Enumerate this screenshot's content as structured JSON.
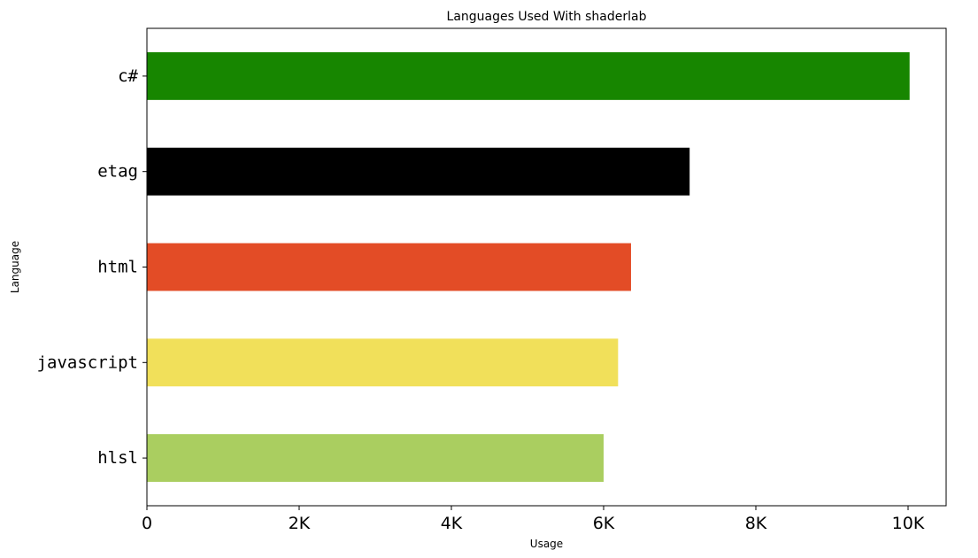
{
  "chart_data": {
    "type": "bar",
    "orientation": "horizontal",
    "title": "Languages Used With shaderlab",
    "xlabel": "Usage",
    "ylabel": "Language",
    "categories": [
      "c#",
      "etag",
      "html",
      "javascript",
      "hlsl"
    ],
    "values": [
      10020,
      7130,
      6360,
      6190,
      6000
    ],
    "colors": [
      "#178600",
      "#000000",
      "#e34c26",
      "#f1e05a",
      "#aace60"
    ],
    "xlim": [
      0,
      10500
    ],
    "xticks": [
      0,
      2000,
      4000,
      6000,
      8000,
      10000
    ],
    "xtick_labels": [
      "0",
      "2K",
      "4K",
      "6K",
      "8K",
      "10K"
    ],
    "grid": false,
    "legend": "none"
  }
}
